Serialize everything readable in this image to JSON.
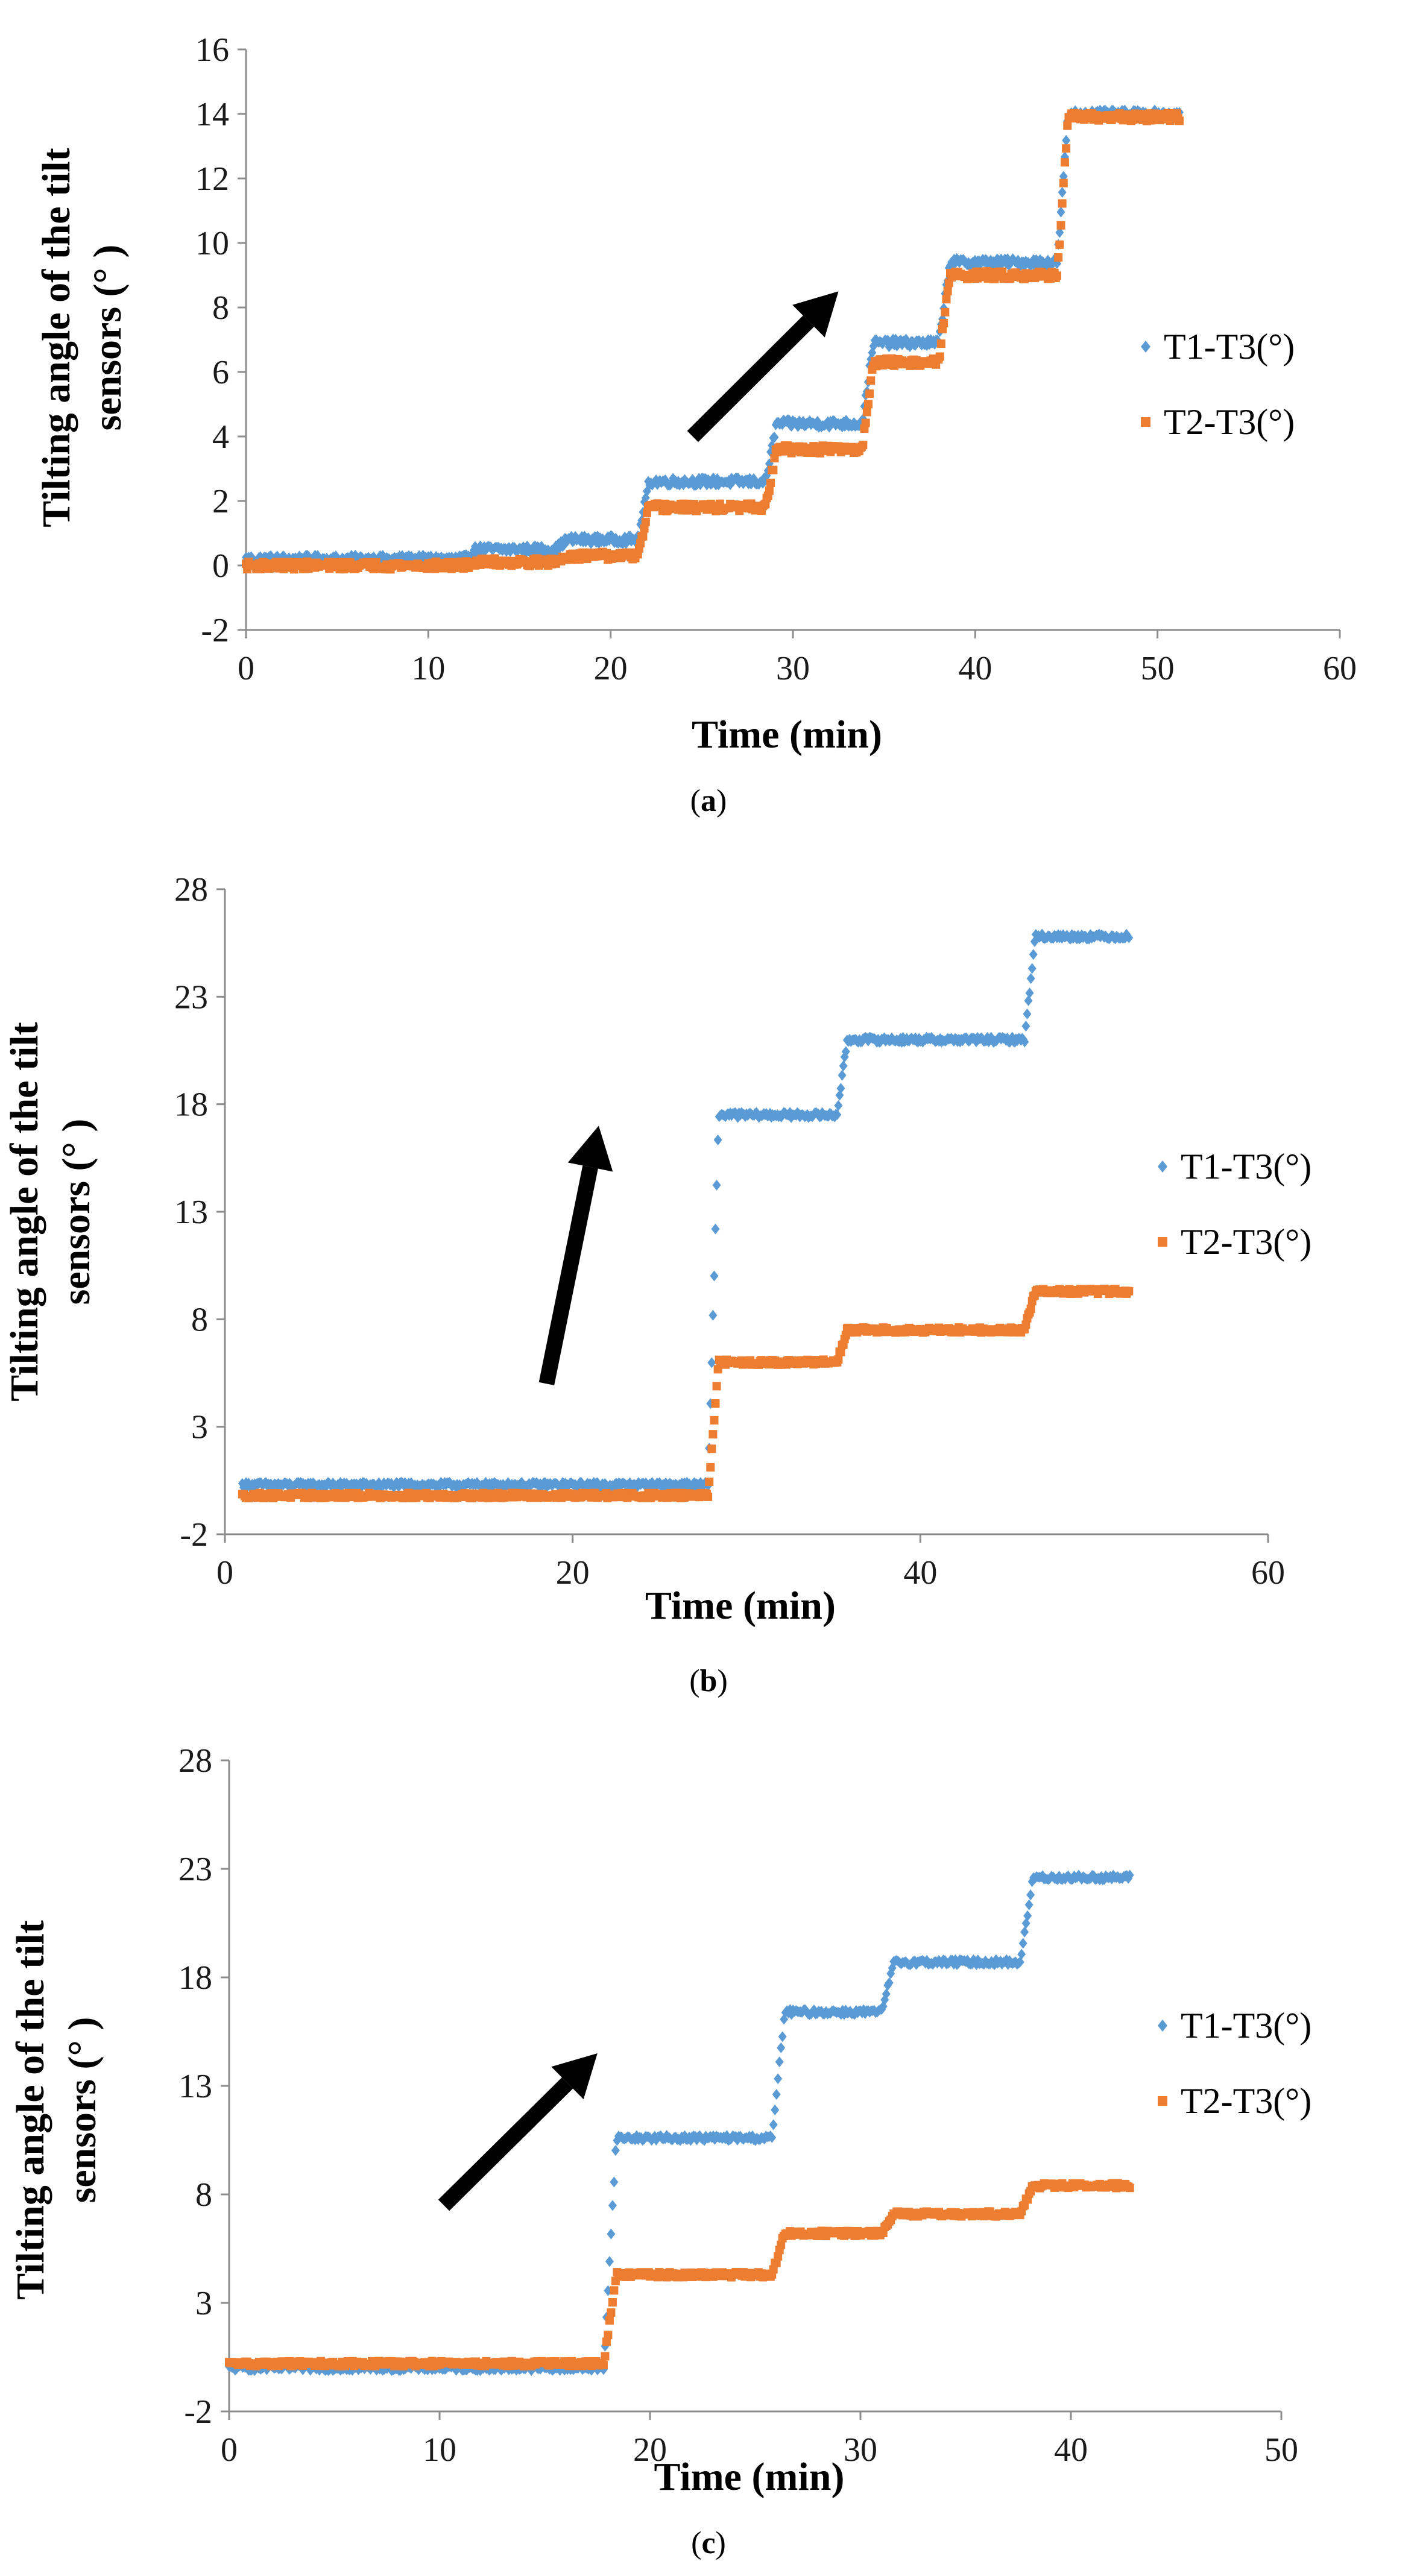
{
  "colors": {
    "series1": "#5b9bd5",
    "series2": "#ed7d31",
    "axis": "#8c8c8c",
    "arrow": "#000000"
  },
  "chart_data": [
    {
      "type": "scatter",
      "panel": "a",
      "caption_label": "a",
      "xlabel": "Time (min)",
      "ylabel_line1": "Tilting angle of the tilt",
      "ylabel_line2": "sensors (°  )",
      "xlim": [
        0,
        60
      ],
      "ylim": [
        -2,
        16
      ],
      "xticks": [
        0,
        10,
        20,
        30,
        40,
        50,
        60
      ],
      "yticks": [
        -2,
        0,
        2,
        4,
        6,
        8,
        10,
        12,
        14,
        16
      ],
      "arrow": {
        "from": [
          24.5,
          4.0
        ],
        "to": [
          32.5,
          8.5
        ]
      },
      "series": [
        {
          "name": "T1-T3(°)",
          "marker": "diamond",
          "noise": 0.12,
          "steps": [
            [
              0,
              0.2
            ],
            [
              12,
              0.5
            ],
            [
              17,
              0.8
            ],
            [
              21.5,
              2.6
            ],
            [
              28.5,
              4.4
            ],
            [
              33.8,
              6.9
            ],
            [
              38,
              9.4
            ],
            [
              44.5,
              14.0
            ],
            [
              51.2,
              14.0
            ]
          ]
        },
        {
          "name": "T2-T3(°)",
          "marker": "square",
          "noise": 0.12,
          "steps": [
            [
              0,
              0.0
            ],
            [
              12,
              0.1
            ],
            [
              17,
              0.3
            ],
            [
              21.5,
              1.8
            ],
            [
              28.5,
              3.6
            ],
            [
              33.8,
              6.3
            ],
            [
              38,
              9.0
            ],
            [
              44.5,
              13.9
            ],
            [
              51.2,
              13.9
            ]
          ]
        }
      ]
    },
    {
      "type": "scatter",
      "panel": "b",
      "caption_label": "b",
      "xlabel": "Time (min)",
      "ylabel_line1": "Tilting angle of the tilt",
      "ylabel_line2": "sensors (°  )",
      "xlim": [
        0,
        60
      ],
      "ylim": [
        -2,
        28
      ],
      "xticks": [
        0,
        20,
        40,
        60
      ],
      "yticks": [
        -2,
        3,
        8,
        13,
        18,
        23,
        28
      ],
      "arrow": {
        "from": [
          18.5,
          5.0
        ],
        "to": [
          21.5,
          17.0
        ]
      },
      "series": [
        {
          "name": "T1-T3(°)",
          "marker": "diamond",
          "noise": 0.12,
          "steps": [
            [
              1,
              0.3
            ],
            [
              27.8,
              17.5
            ],
            [
              35.2,
              21.0
            ],
            [
              46,
              25.8
            ],
            [
              52,
              25.8
            ]
          ]
        },
        {
          "name": "T2-T3(°)",
          "marker": "square",
          "noise": 0.12,
          "steps": [
            [
              1,
              -0.2
            ],
            [
              27.8,
              6.0
            ],
            [
              35.2,
              7.5
            ],
            [
              46,
              9.3
            ],
            [
              52,
              9.3
            ]
          ]
        }
      ]
    },
    {
      "type": "scatter",
      "panel": "c",
      "caption_label": "c",
      "xlabel": "Time (min)",
      "ylabel_line1": "Tilting angle of the tilt",
      "ylabel_line2": "sensors (°  )",
      "xlim": [
        0,
        50
      ],
      "ylim": [
        -2,
        28
      ],
      "xticks": [
        0,
        10,
        20,
        30,
        40,
        50
      ],
      "yticks": [
        -2,
        3,
        8,
        13,
        18,
        23,
        28
      ],
      "arrow": {
        "from": [
          10.2,
          7.5
        ],
        "to": [
          17.5,
          14.5
        ]
      },
      "series": [
        {
          "name": "T1-T3(°)",
          "marker": "diamond",
          "noise": 0.12,
          "steps": [
            [
              0,
              0.0
            ],
            [
              17.8,
              10.6
            ],
            [
              25.8,
              16.4
            ],
            [
              31,
              18.7
            ],
            [
              37.6,
              22.6
            ],
            [
              42.8,
              22.6
            ]
          ]
        },
        {
          "name": "T2-T3(°)",
          "marker": "square",
          "noise": 0.12,
          "steps": [
            [
              0,
              0.2
            ],
            [
              17.8,
              4.3
            ],
            [
              25.8,
              6.2
            ],
            [
              31,
              7.1
            ],
            [
              37.6,
              8.4
            ],
            [
              42.8,
              8.4
            ]
          ]
        }
      ]
    }
  ]
}
